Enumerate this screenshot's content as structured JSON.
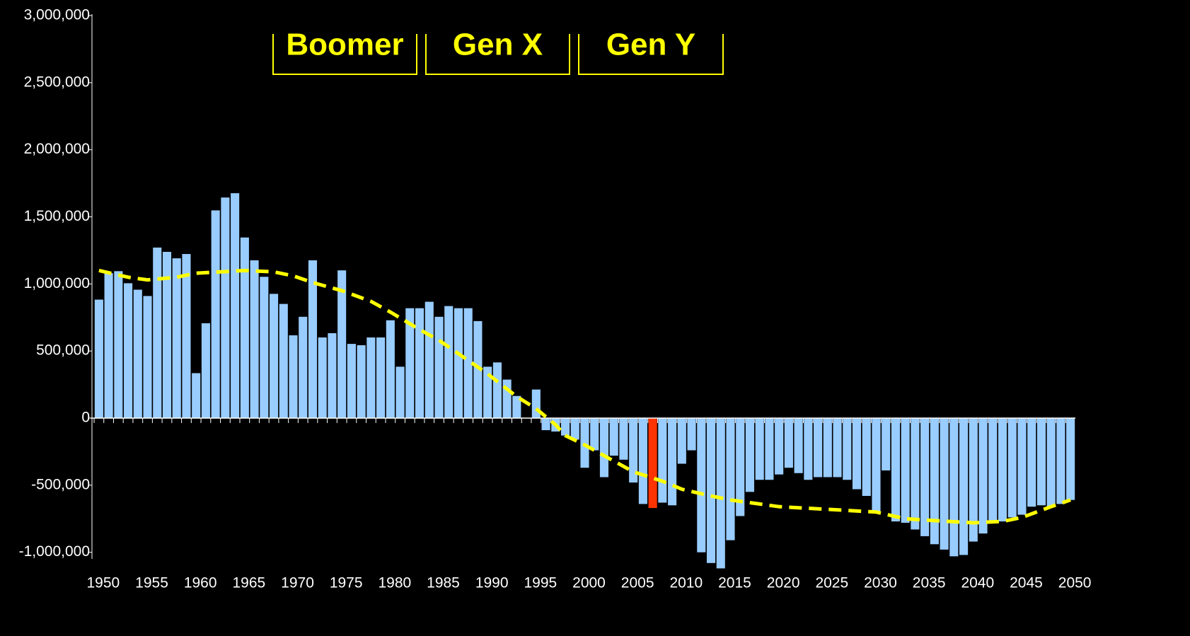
{
  "chart_data": {
    "type": "bar",
    "x": [
      1950,
      1951,
      1952,
      1953,
      1954,
      1955,
      1956,
      1957,
      1958,
      1959,
      1960,
      1961,
      1962,
      1963,
      1964,
      1965,
      1966,
      1967,
      1968,
      1969,
      1970,
      1971,
      1972,
      1973,
      1974,
      1975,
      1976,
      1977,
      1978,
      1979,
      1980,
      1981,
      1982,
      1983,
      1984,
      1985,
      1986,
      1987,
      1988,
      1989,
      1990,
      1991,
      1992,
      1993,
      1994,
      1995,
      1996,
      1997,
      1998,
      1999,
      2000,
      2001,
      2002,
      2003,
      2004,
      2005,
      2006,
      2007,
      2008,
      2009,
      2010,
      2011,
      2012,
      2013,
      2014,
      2015,
      2016,
      2017,
      2018,
      2019,
      2020,
      2021,
      2022,
      2023,
      2024,
      2025,
      2026,
      2027,
      2028,
      2029,
      2030,
      2031,
      2032,
      2033,
      2034,
      2035,
      2036,
      2037,
      2038,
      2039,
      2040,
      2041,
      2042,
      2043,
      2044,
      2045,
      2046,
      2047,
      2048,
      2049,
      2050
    ],
    "values": [
      883000,
      1080000,
      1095000,
      1005000,
      957000,
      910000,
      1271000,
      1239000,
      1191000,
      1223000,
      335000,
      707000,
      1548000,
      1644000,
      1676000,
      1346000,
      1176000,
      1053000,
      926000,
      851000,
      617000,
      755000,
      1176000,
      601000,
      633000,
      1101000,
      553000,
      543000,
      601000,
      601000,
      729000,
      383000,
      819000,
      819000,
      867000,
      755000,
      835000,
      819000,
      819000,
      723000,
      383000,
      415000,
      287000,
      165000,
      0,
      213000,
      -90000,
      -100000,
      -130000,
      -160000,
      -370000,
      -240000,
      -440000,
      -280000,
      -310000,
      -480000,
      -640000,
      -670000,
      -630000,
      -650000,
      -340000,
      -240000,
      -1000000,
      -1080000,
      -1120000,
      -910000,
      -730000,
      -550000,
      -460000,
      -460000,
      -420000,
      -370000,
      -410000,
      -460000,
      -440000,
      -440000,
      -440000,
      -460000,
      -530000,
      -580000,
      -700000,
      -390000,
      -770000,
      -780000,
      -830000,
      -880000,
      -940000,
      -980000,
      -1030000,
      -1020000,
      -920000,
      -860000,
      -770000,
      -770000,
      -740000,
      -720000,
      -660000,
      -650000,
      -660000,
      -640000,
      -610000
    ],
    "color": "#99ccff",
    "highlight": {
      "x": 2007,
      "color": "#ff3300"
    },
    "trend": {
      "color": "#ffff00",
      "x": [
        1950,
        1953,
        1955,
        1958,
        1960,
        1965,
        1968,
        1970,
        1972,
        1975,
        1978,
        1980,
        1983,
        1985,
        1988,
        1990,
        1993,
        1995,
        1997,
        1998,
        2000,
        2003,
        2005,
        2008,
        2010,
        2013,
        2015,
        2018,
        2020,
        2025,
        2030,
        2033,
        2035,
        2040,
        2043,
        2045,
        2048,
        2050
      ],
      "values": [
        1100000,
        1050000,
        1030000,
        1050000,
        1080000,
        1100000,
        1090000,
        1060000,
        1010000,
        950000,
        870000,
        790000,
        660000,
        580000,
        430000,
        330000,
        160000,
        70000,
        -50000,
        -130000,
        -200000,
        -320000,
        -400000,
        -470000,
        -530000,
        -580000,
        -610000,
        -640000,
        -660000,
        -680000,
        -700000,
        -750000,
        -760000,
        -780000,
        -770000,
        -740000,
        -660000,
        -610000
      ]
    },
    "annotations": [
      {
        "text": "Boomer"
      },
      {
        "text": "Gen X"
      },
      {
        "text": "Gen Y"
      }
    ],
    "xlim": [
      1949.5,
      2050.5
    ],
    "xticks": [
      1950,
      1955,
      1960,
      1965,
      1970,
      1975,
      1980,
      1985,
      1990,
      1995,
      2000,
      2005,
      2010,
      2015,
      2020,
      2025,
      2030,
      2035,
      2040,
      2045,
      2050
    ],
    "ylim": [
      -1200000,
      3000000
    ],
    "yticks": [
      {
        "value": -1000000,
        "label": "-1,000,000"
      },
      {
        "value": -500000,
        "label": "-500,000"
      },
      0,
      {
        "value": 500000,
        "label": "500,000"
      },
      {
        "value": 1000000,
        "label": "1,000,000"
      },
      {
        "value": 1500000,
        "label": "1,500,000"
      },
      {
        "value": 2000000,
        "label": "2,000,000"
      },
      {
        "value": 2500000,
        "label": "2,500,000"
      },
      {
        "value": 3000000,
        "label": "3,000,000"
      }
    ]
  }
}
